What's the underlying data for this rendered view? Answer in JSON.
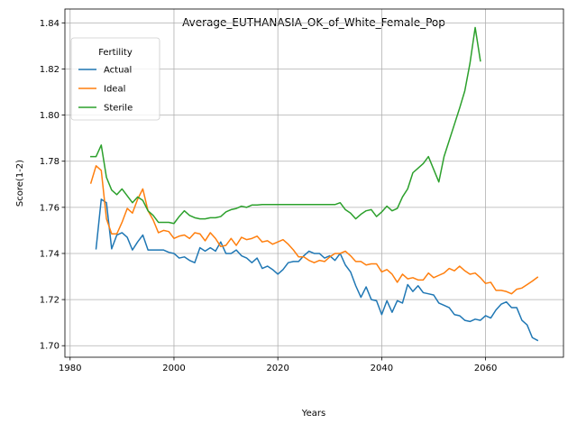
{
  "chart_data": {
    "type": "line",
    "title": "Average_EUTHANASIA_OK_of_White_Female_Pop",
    "xlabel": "Years",
    "ylabel": "Score(1-2)",
    "xlim": [
      1979,
      2075
    ],
    "ylim": [
      1.695,
      1.846
    ],
    "xticks": [
      1980,
      2000,
      2020,
      2040,
      2060
    ],
    "xtick_labels": [
      "1980",
      "2000",
      "2020",
      "2040",
      "2060"
    ],
    "yticks": [
      1.7,
      1.72,
      1.74,
      1.76,
      1.78,
      1.8,
      1.82,
      1.84
    ],
    "ytick_labels": [
      "1.70",
      "1.72",
      "1.74",
      "1.76",
      "1.78",
      "1.80",
      "1.82",
      "1.84"
    ],
    "grid": true,
    "legend": {
      "title": "Fertility",
      "position": "top-left"
    },
    "series": [
      {
        "name": "Actual",
        "color": "#1f77b4",
        "x": [
          1985,
          1986,
          1987,
          1988,
          1989,
          1990,
          1991,
          1992,
          1993,
          1994,
          1995,
          1996,
          1997,
          1998,
          1999,
          2000,
          2001,
          2002,
          2003,
          2004,
          2005,
          2006,
          2007,
          2008,
          2009,
          2010,
          2011,
          2012,
          2013,
          2014,
          2015,
          2016,
          2017,
          2018,
          2019,
          2020,
          2021,
          2022,
          2023,
          2024,
          2025,
          2026,
          2027,
          2028,
          2029,
          2030,
          2031,
          2032,
          2033,
          2034,
          2035,
          2036,
          2037,
          2038,
          2039,
          2040,
          2041,
          2042,
          2043,
          2044,
          2045,
          2046,
          2047,
          2048,
          2049,
          2050,
          2051,
          2052,
          2053,
          2054,
          2055,
          2056,
          2057,
          2058,
          2059,
          2060,
          2061,
          2062,
          2063,
          2064,
          2065,
          2066,
          2067,
          2068,
          2069,
          2070
        ],
        "y": [
          1.742,
          1.7635,
          1.762,
          1.742,
          1.748,
          1.749,
          1.747,
          1.7415,
          1.745,
          1.748,
          1.7415,
          1.7415,
          1.7415,
          1.7415,
          1.7405,
          1.74,
          1.738,
          1.7385,
          1.737,
          1.736,
          1.7425,
          1.741,
          1.7425,
          1.741,
          1.745,
          1.74,
          1.74,
          1.7415,
          1.739,
          1.738,
          1.736,
          1.738,
          1.7335,
          1.7345,
          1.733,
          1.731,
          1.733,
          1.736,
          1.7365,
          1.7365,
          1.739,
          1.741,
          1.74,
          1.74,
          1.738,
          1.739,
          1.737,
          1.74,
          1.735,
          1.732,
          1.726,
          1.721,
          1.7255,
          1.72,
          1.7195,
          1.7135,
          1.7195,
          1.7145,
          1.7195,
          1.7185,
          1.7265,
          1.7235,
          1.726,
          1.723,
          1.7225,
          1.722,
          1.7185,
          1.7175,
          1.7165,
          1.7135,
          1.713,
          1.711,
          1.7105,
          1.7115,
          1.711,
          1.713,
          1.712,
          1.7155,
          1.718,
          1.719,
          1.7165,
          1.7165,
          1.711,
          1.709,
          1.7035,
          1.7023
        ]
      },
      {
        "name": "Ideal",
        "color": "#ff7f0e",
        "x": [
          1984,
          1985,
          1986,
          1987,
          1988,
          1989,
          1990,
          1991,
          1992,
          1993,
          1994,
          1995,
          1996,
          1997,
          1998,
          1999,
          2000,
          2001,
          2002,
          2003,
          2004,
          2005,
          2006,
          2007,
          2008,
          2009,
          2010,
          2011,
          2012,
          2013,
          2014,
          2015,
          2016,
          2017,
          2018,
          2019,
          2020,
          2021,
          2022,
          2023,
          2024,
          2025,
          2026,
          2027,
          2028,
          2029,
          2030,
          2031,
          2032,
          2033,
          2034,
          2035,
          2036,
          2037,
          2038,
          2039,
          2040,
          2041,
          2042,
          2043,
          2044,
          2045,
          2046,
          2047,
          2048,
          2049,
          2050,
          2051,
          2052,
          2053,
          2054,
          2055,
          2056,
          2057,
          2058,
          2059,
          2060,
          2061,
          2062,
          2063,
          2064,
          2065,
          2066,
          2067,
          2068,
          2069,
          2070
        ],
        "y": [
          1.7705,
          1.778,
          1.776,
          1.755,
          1.7485,
          1.7485,
          1.7535,
          1.7595,
          1.7575,
          1.7635,
          1.768,
          1.7585,
          1.7545,
          1.749,
          1.75,
          1.7495,
          1.7465,
          1.7475,
          1.748,
          1.7465,
          1.749,
          1.7485,
          1.7455,
          1.749,
          1.7465,
          1.743,
          1.7435,
          1.7465,
          1.7435,
          1.747,
          1.746,
          1.7465,
          1.7475,
          1.745,
          1.7455,
          1.744,
          1.745,
          1.746,
          1.744,
          1.7415,
          1.7385,
          1.7385,
          1.737,
          1.736,
          1.737,
          1.7365,
          1.7385,
          1.74,
          1.74,
          1.741,
          1.739,
          1.7365,
          1.7365,
          1.735,
          1.7355,
          1.7355,
          1.732,
          1.733,
          1.731,
          1.7275,
          1.731,
          1.729,
          1.7295,
          1.7285,
          1.7285,
          1.7315,
          1.7295,
          1.7305,
          1.7315,
          1.7335,
          1.7325,
          1.7345,
          1.7325,
          1.731,
          1.7315,
          1.7295,
          1.727,
          1.7275,
          1.724,
          1.724,
          1.7235,
          1.7225,
          1.7245,
          1.725,
          1.7265,
          1.728,
          1.7297
        ]
      },
      {
        "name": "Sterile",
        "color": "#2ca02c",
        "x": [
          1984,
          1985,
          1986,
          1987,
          1988,
          1989,
          1990,
          1991,
          1992,
          1993,
          1994,
          1995,
          1996,
          1997,
          1998,
          1999,
          2000,
          2001,
          2002,
          2003,
          2004,
          2005,
          2006,
          2007,
          2008,
          2009,
          2010,
          2011,
          2012,
          2013,
          2014,
          2015,
          2016,
          2017,
          2018,
          2019,
          2020,
          2021,
          2022,
          2023,
          2024,
          2025,
          2026,
          2027,
          2028,
          2029,
          2030,
          2031,
          2032,
          2033,
          2034,
          2035,
          2036,
          2037,
          2038,
          2039,
          2040,
          2041,
          2042,
          2043,
          2044,
          2045,
          2046,
          2047,
          2048,
          2049,
          2050,
          2051,
          2052,
          2053,
          2054,
          2055,
          2056,
          2057,
          2058,
          2059
        ],
        "y": [
          1.782,
          1.782,
          1.787,
          1.773,
          1.7675,
          1.7655,
          1.768,
          1.765,
          1.762,
          1.7645,
          1.763,
          1.7585,
          1.7565,
          1.7535,
          1.7535,
          1.7535,
          1.753,
          1.756,
          1.7585,
          1.7565,
          1.7555,
          1.755,
          1.755,
          1.7555,
          1.7555,
          1.756,
          1.758,
          1.759,
          1.7595,
          1.7605,
          1.76,
          1.761,
          1.761,
          1.7612,
          1.7612,
          1.7612,
          1.7612,
          1.7612,
          1.7612,
          1.7612,
          1.7612,
          1.7612,
          1.7612,
          1.7612,
          1.7612,
          1.7612,
          1.7612,
          1.7612,
          1.762,
          1.759,
          1.7575,
          1.755,
          1.757,
          1.7585,
          1.759,
          1.756,
          1.758,
          1.7605,
          1.7585,
          1.7595,
          1.7645,
          1.768,
          1.775,
          1.777,
          1.779,
          1.782,
          1.7765,
          1.771,
          1.782,
          1.789,
          1.796,
          1.803,
          1.8105,
          1.8225,
          1.838,
          1.8235
        ]
      }
    ]
  }
}
